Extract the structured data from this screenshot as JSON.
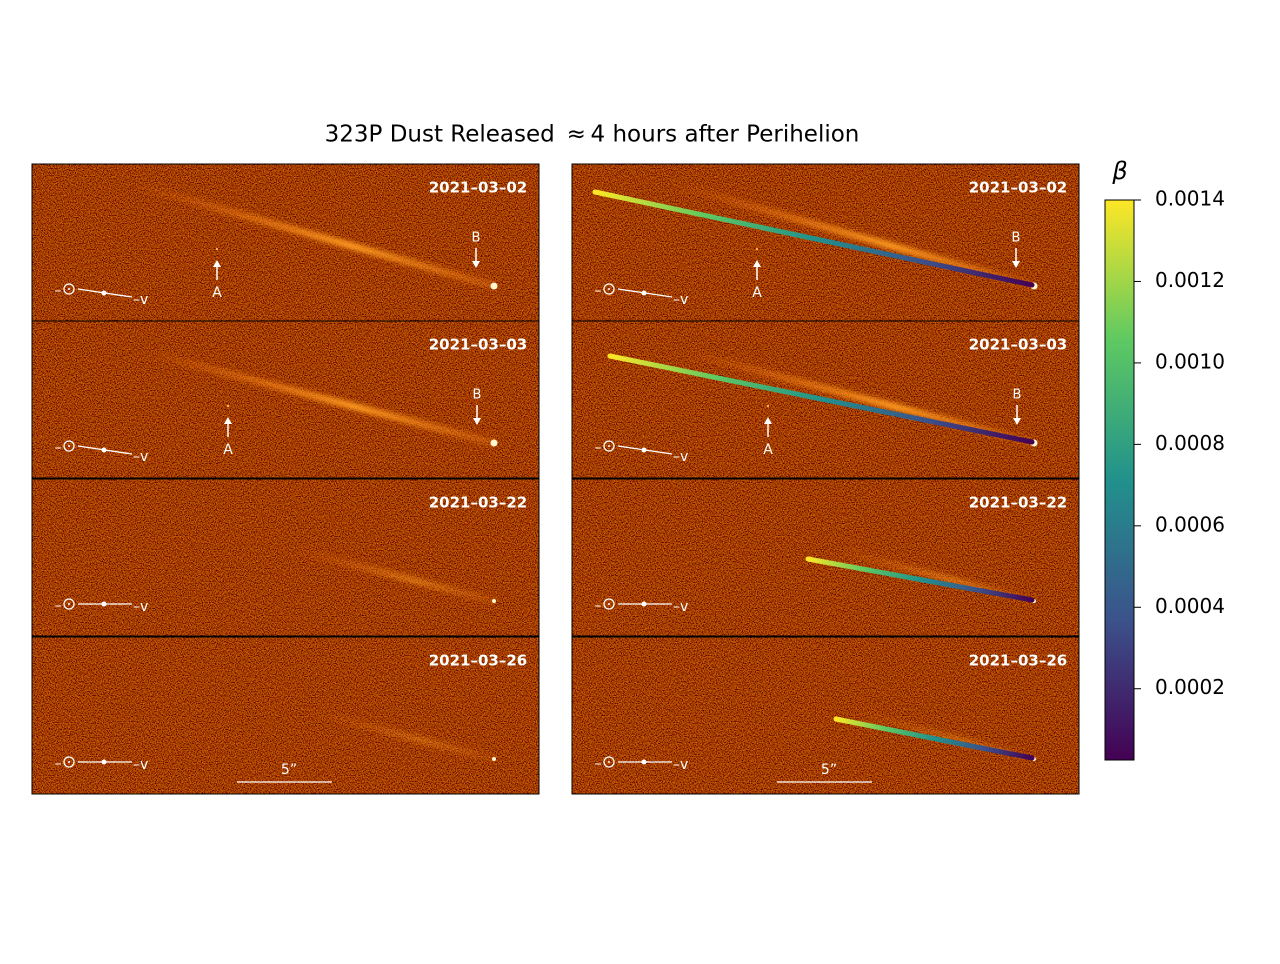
{
  "title": "323P Dust Released  ≈ 4 hours after Perihelion",
  "panels": [
    {
      "date": "2021–03–02",
      "markers": [
        "A",
        "B"
      ]
    },
    {
      "date": "2021–03–03",
      "markers": [
        "A",
        "B"
      ]
    },
    {
      "date": "2021–03–22"
    },
    {
      "date": "2021–03–26",
      "scale_bar": "5”"
    }
  ],
  "direction_labels": {
    "sun": "–",
    "velocity": "–v"
  },
  "colorbar": {
    "label": "β",
    "lim": [
      2.5e-05,
      0.0014
    ],
    "ticks": [
      0.0002,
      0.0004,
      0.0006,
      0.0008,
      {
        "value": 0.001,
        "label": "0.0010"
      },
      0.0012,
      0.0014
    ]
  }
}
